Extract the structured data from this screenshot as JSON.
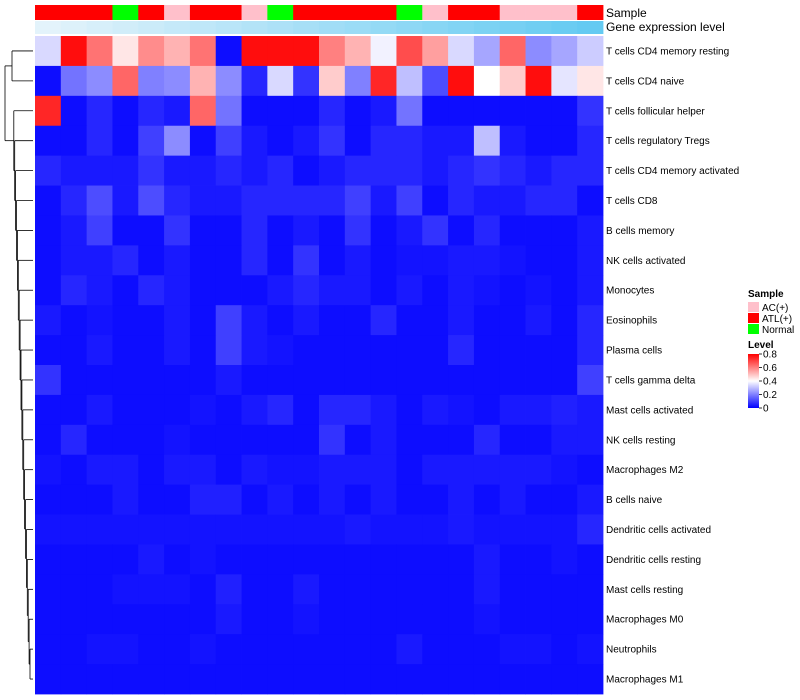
{
  "chart_data": {
    "type": "heatmap",
    "title": "",
    "annotation_rows": [
      {
        "label": "Sample",
        "values": [
          "ATL(+)",
          "ATL(+)",
          "ATL(+)",
          "Normal",
          "ATL(+)",
          "AC(+)",
          "ATL(+)",
          "ATL(+)",
          "AC(+)",
          "Normal",
          "ATL(+)",
          "ATL(+)",
          "ATL(+)",
          "ATL(+)",
          "Normal",
          "AC(+)",
          "ATL(+)",
          "ATL(+)",
          "AC(+)",
          "AC(+)",
          "AC(+)",
          "ATL(+)"
        ]
      },
      {
        "label": "Gene expression level",
        "values": [
          0.02,
          0.06,
          0.1,
          0.14,
          0.18,
          0.22,
          0.26,
          0.3,
          0.34,
          0.38,
          0.42,
          0.46,
          0.5,
          0.54,
          0.58,
          0.62,
          0.66,
          0.7,
          0.74,
          0.78,
          0.82,
          0.86
        ]
      }
    ],
    "rows": [
      "T cells CD4 memory resting",
      "T cells CD4 naive",
      "T cells follicular helper",
      "T cells regulatory  Tregs",
      "T cells CD4 memory activated",
      "T cells CD8",
      "B cells memory",
      "NK cells activated",
      "Monocytes",
      "Eosinophils",
      "Plasma cells",
      "T cells gamma delta",
      "Mast cells activated",
      "NK cells resting",
      "Macrophages M2",
      "B cells naive",
      "Dendritic cells activated",
      "Dendritic cells resting",
      "Mast cells resting",
      "Macrophages M0",
      "Neutrophils",
      "Macrophages M1"
    ],
    "values": [
      [
        0.34,
        0.78,
        0.62,
        0.44,
        0.58,
        0.52,
        0.62,
        0.02,
        0.78,
        0.78,
        0.78,
        0.6,
        0.52,
        0.38,
        0.68,
        0.55,
        0.34,
        0.26,
        0.64,
        0.22,
        0.26,
        0.32
      ],
      [
        0.02,
        0.18,
        0.22,
        0.64,
        0.2,
        0.22,
        0.52,
        0.22,
        0.06,
        0.34,
        0.08,
        0.48,
        0.2,
        0.74,
        0.3,
        0.12,
        0.78,
        0.4,
        0.48,
        0.78,
        0.36,
        0.44
      ],
      [
        0.74,
        0.02,
        0.06,
        0.02,
        0.06,
        0.04,
        0.64,
        0.18,
        0.02,
        0.02,
        0.02,
        0.06,
        0.02,
        0.04,
        0.18,
        0.02,
        0.02,
        0.02,
        0.02,
        0.02,
        0.02,
        0.08
      ],
      [
        0.02,
        0.02,
        0.06,
        0.02,
        0.1,
        0.22,
        0.02,
        0.1,
        0.04,
        0.02,
        0.04,
        0.08,
        0.02,
        0.06,
        0.06,
        0.04,
        0.04,
        0.3,
        0.04,
        0.02,
        0.02,
        0.06
      ],
      [
        0.06,
        0.04,
        0.04,
        0.04,
        0.08,
        0.04,
        0.04,
        0.06,
        0.04,
        0.06,
        0.02,
        0.04,
        0.06,
        0.06,
        0.06,
        0.04,
        0.06,
        0.08,
        0.06,
        0.04,
        0.06,
        0.06
      ],
      [
        0.02,
        0.06,
        0.12,
        0.04,
        0.12,
        0.06,
        0.04,
        0.04,
        0.06,
        0.06,
        0.06,
        0.06,
        0.1,
        0.04,
        0.1,
        0.02,
        0.06,
        0.04,
        0.04,
        0.06,
        0.06,
        0.02
      ],
      [
        0.02,
        0.04,
        0.1,
        0.02,
        0.02,
        0.08,
        0.02,
        0.02,
        0.06,
        0.02,
        0.04,
        0.02,
        0.08,
        0.02,
        0.04,
        0.08,
        0.02,
        0.06,
        0.02,
        0.02,
        0.02,
        0.04
      ],
      [
        0.02,
        0.04,
        0.04,
        0.06,
        0.02,
        0.04,
        0.02,
        0.02,
        0.06,
        0.02,
        0.08,
        0.02,
        0.04,
        0.02,
        0.03,
        0.03,
        0.04,
        0.04,
        0.03,
        0.02,
        0.02,
        0.04
      ],
      [
        0.02,
        0.06,
        0.04,
        0.02,
        0.06,
        0.04,
        0.02,
        0.02,
        0.02,
        0.04,
        0.06,
        0.04,
        0.04,
        0.02,
        0.04,
        0.02,
        0.04,
        0.03,
        0.02,
        0.03,
        0.02,
        0.04
      ],
      [
        0.04,
        0.02,
        0.03,
        0.02,
        0.02,
        0.04,
        0.02,
        0.1,
        0.04,
        0.02,
        0.04,
        0.02,
        0.02,
        0.06,
        0.02,
        0.02,
        0.04,
        0.02,
        0.02,
        0.04,
        0.02,
        0.06
      ],
      [
        0.02,
        0.02,
        0.04,
        0.02,
        0.02,
        0.04,
        0.02,
        0.1,
        0.04,
        0.03,
        0.02,
        0.02,
        0.02,
        0.02,
        0.02,
        0.02,
        0.06,
        0.02,
        0.02,
        0.02,
        0.02,
        0.06
      ],
      [
        0.08,
        0.02,
        0.02,
        0.02,
        0.02,
        0.02,
        0.02,
        0.04,
        0.02,
        0.02,
        0.02,
        0.02,
        0.02,
        0.02,
        0.02,
        0.02,
        0.02,
        0.02,
        0.02,
        0.02,
        0.02,
        0.1
      ],
      [
        0.02,
        0.02,
        0.04,
        0.02,
        0.02,
        0.02,
        0.03,
        0.02,
        0.04,
        0.06,
        0.02,
        0.06,
        0.06,
        0.04,
        0.02,
        0.04,
        0.03,
        0.02,
        0.04,
        0.04,
        0.05,
        0.04
      ],
      [
        0.02,
        0.06,
        0.02,
        0.02,
        0.02,
        0.03,
        0.02,
        0.02,
        0.02,
        0.02,
        0.02,
        0.08,
        0.02,
        0.04,
        0.02,
        0.02,
        0.02,
        0.06,
        0.02,
        0.02,
        0.04,
        0.04
      ],
      [
        0.03,
        0.02,
        0.04,
        0.04,
        0.02,
        0.04,
        0.04,
        0.02,
        0.04,
        0.03,
        0.03,
        0.04,
        0.04,
        0.04,
        0.02,
        0.04,
        0.04,
        0.04,
        0.04,
        0.04,
        0.03,
        0.02
      ],
      [
        0.02,
        0.02,
        0.02,
        0.04,
        0.02,
        0.02,
        0.05,
        0.05,
        0.02,
        0.04,
        0.02,
        0.04,
        0.02,
        0.04,
        0.02,
        0.02,
        0.04,
        0.02,
        0.04,
        0.02,
        0.02,
        0.04
      ],
      [
        0.03,
        0.03,
        0.03,
        0.03,
        0.03,
        0.03,
        0.03,
        0.03,
        0.03,
        0.03,
        0.03,
        0.03,
        0.04,
        0.03,
        0.03,
        0.03,
        0.04,
        0.03,
        0.03,
        0.03,
        0.03,
        0.06
      ],
      [
        0.02,
        0.02,
        0.02,
        0.02,
        0.04,
        0.02,
        0.03,
        0.02,
        0.02,
        0.02,
        0.02,
        0.02,
        0.02,
        0.02,
        0.02,
        0.02,
        0.02,
        0.04,
        0.02,
        0.02,
        0.03,
        0.02
      ],
      [
        0.02,
        0.02,
        0.02,
        0.03,
        0.03,
        0.03,
        0.02,
        0.05,
        0.02,
        0.02,
        0.04,
        0.02,
        0.02,
        0.02,
        0.02,
        0.02,
        0.02,
        0.04,
        0.02,
        0.02,
        0.02,
        0.02
      ],
      [
        0.02,
        0.02,
        0.02,
        0.02,
        0.02,
        0.02,
        0.02,
        0.04,
        0.02,
        0.02,
        0.03,
        0.02,
        0.02,
        0.02,
        0.02,
        0.02,
        0.02,
        0.03,
        0.02,
        0.02,
        0.02,
        0.02
      ],
      [
        0.02,
        0.02,
        0.03,
        0.03,
        0.02,
        0.02,
        0.03,
        0.02,
        0.02,
        0.02,
        0.02,
        0.02,
        0.02,
        0.02,
        0.04,
        0.02,
        0.02,
        0.02,
        0.03,
        0.03,
        0.02,
        0.03
      ],
      [
        0.02,
        0.02,
        0.02,
        0.02,
        0.02,
        0.02,
        0.02,
        0.02,
        0.02,
        0.02,
        0.02,
        0.02,
        0.02,
        0.02,
        0.02,
        0.02,
        0.02,
        0.02,
        0.02,
        0.02,
        0.02,
        0.02
      ]
    ],
    "color_scale": {
      "min": 0,
      "max": 0.8,
      "colors": [
        "#0000ff",
        "#ffffff",
        "#ff0000"
      ]
    },
    "legend": {
      "position": "right",
      "sample_title": "Sample",
      "sample_entries": [
        {
          "label": "AC(+)",
          "color": "#ffc0cb"
        },
        {
          "label": "ATL(+)",
          "color": "#ff0000"
        },
        {
          "label": "Normal",
          "color": "#00ff00"
        }
      ],
      "level_title": "Level",
      "level_ticks": [
        "0.8",
        "0.6",
        "0.4",
        "0.2",
        "0"
      ],
      "level_tick_values": [
        0.8,
        0.6,
        0.4,
        0.2,
        0
      ]
    },
    "gene_expr_colors": [
      "#e6f4fb",
      "#4fc3f0"
    ],
    "dendrogram_color": "#000000"
  }
}
